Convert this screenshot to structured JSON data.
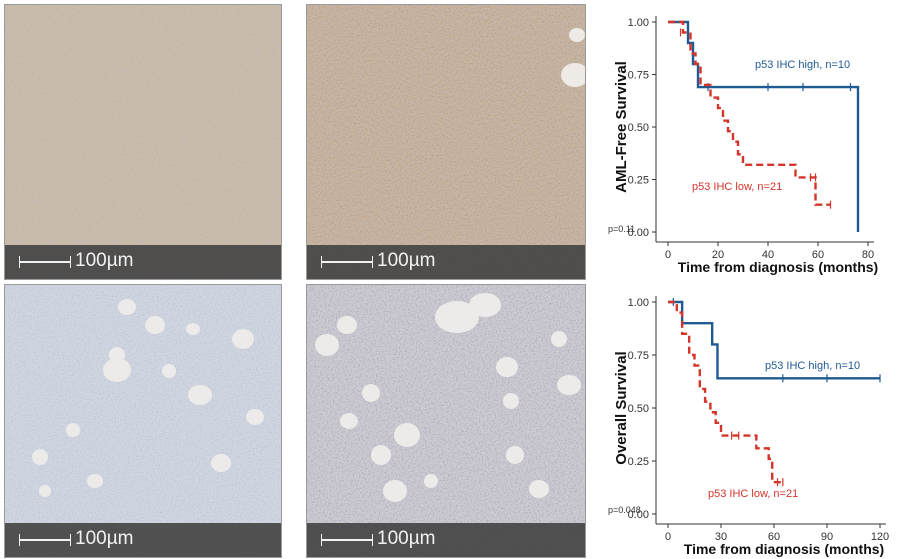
{
  "panels": [
    {
      "id": "top-left",
      "scale_label": "100µm"
    },
    {
      "id": "top-right",
      "scale_label": "100µm"
    },
    {
      "id": "bottom-left",
      "scale_label": "100µm"
    },
    {
      "id": "bottom-right",
      "scale_label": "100µm"
    }
  ],
  "colors": {
    "high": "#1f5a93",
    "low": "#d5342b"
  },
  "chart_data": [
    {
      "type": "line",
      "subtype": "kaplan-meier",
      "ylabel": "AML-Free Survival",
      "xlabel": "Time from diagnosis (months)",
      "xlim": [
        0,
        80
      ],
      "ylim": [
        0,
        1
      ],
      "xticks": [
        0,
        20,
        40,
        60,
        80
      ],
      "yticks": [
        "0.00",
        "0.25",
        "0.50",
        "0.75",
        "1.00"
      ],
      "pvalue": "p=0.11",
      "series": [
        {
          "name": "p53 IHC high, n=10",
          "steps": [
            [
              0,
              1.0
            ],
            [
              8,
              1.0
            ],
            [
              8,
              0.9
            ],
            [
              10,
              0.9
            ],
            [
              10,
              0.8
            ],
            [
              12,
              0.8
            ],
            [
              12,
              0.69
            ],
            [
              76,
              0.69
            ],
            [
              76,
              0.0
            ]
          ],
          "censors": [
            [
              16,
              0.69
            ],
            [
              40,
              0.69
            ],
            [
              54,
              0.69
            ],
            [
              73,
              0.69
            ]
          ]
        },
        {
          "name": "p53 IHC low, n=21",
          "steps": [
            [
              0,
              1.0
            ],
            [
              6,
              1.0
            ],
            [
              6,
              0.95
            ],
            [
              9,
              0.95
            ],
            [
              9,
              0.85
            ],
            [
              11,
              0.85
            ],
            [
              11,
              0.8
            ],
            [
              13,
              0.8
            ],
            [
              13,
              0.7
            ],
            [
              17,
              0.7
            ],
            [
              17,
              0.64
            ],
            [
              20,
              0.64
            ],
            [
              20,
              0.59
            ],
            [
              22,
              0.59
            ],
            [
              22,
              0.53
            ],
            [
              24,
              0.53
            ],
            [
              24,
              0.48
            ],
            [
              26,
              0.48
            ],
            [
              26,
              0.43
            ],
            [
              28,
              0.43
            ],
            [
              28,
              0.37
            ],
            [
              30,
              0.37
            ],
            [
              30,
              0.32
            ],
            [
              51,
              0.32
            ],
            [
              51,
              0.26
            ],
            [
              59,
              0.26
            ],
            [
              59,
              0.13
            ],
            [
              65,
              0.13
            ]
          ],
          "censors": [
            [
              5,
              0.95
            ],
            [
              57,
              0.26
            ],
            [
              59,
              0.26
            ],
            [
              65,
              0.13
            ]
          ]
        }
      ]
    },
    {
      "type": "line",
      "subtype": "kaplan-meier",
      "ylabel": "Overall Survival",
      "xlabel": "Time from diagnosis (months)",
      "xlim": [
        0,
        120
      ],
      "ylim": [
        0,
        1
      ],
      "xticks": [
        0,
        30,
        60,
        90,
        120
      ],
      "yticks": [
        "0.00",
        "0.25",
        "0.50",
        "0.75",
        "1.00"
      ],
      "pvalue": "p=0.048",
      "series": [
        {
          "name": "p53 IHC high, n=10",
          "steps": [
            [
              0,
              1.0
            ],
            [
              8,
              1.0
            ],
            [
              8,
              0.9
            ],
            [
              25,
              0.9
            ],
            [
              25,
              0.8
            ],
            [
              28,
              0.8
            ],
            [
              28,
              0.64
            ],
            [
              120,
              0.64
            ]
          ],
          "censors": [
            [
              3,
              1.0
            ],
            [
              65,
              0.64
            ],
            [
              90,
              0.64
            ],
            [
              120,
              0.64
            ]
          ]
        },
        {
          "name": "p53 IHC low, n=21",
          "steps": [
            [
              0,
              1.0
            ],
            [
              5,
              1.0
            ],
            [
              5,
              0.95
            ],
            [
              8,
              0.95
            ],
            [
              8,
              0.85
            ],
            [
              12,
              0.85
            ],
            [
              12,
              0.75
            ],
            [
              15,
              0.75
            ],
            [
              15,
              0.7
            ],
            [
              18,
              0.7
            ],
            [
              18,
              0.59
            ],
            [
              21,
              0.59
            ],
            [
              21,
              0.53
            ],
            [
              24,
              0.53
            ],
            [
              24,
              0.48
            ],
            [
              27,
              0.48
            ],
            [
              27,
              0.43
            ],
            [
              30,
              0.43
            ],
            [
              30,
              0.37
            ],
            [
              50,
              0.37
            ],
            [
              50,
              0.31
            ],
            [
              57,
              0.31
            ],
            [
              57,
              0.26
            ],
            [
              59,
              0.26
            ],
            [
              59,
              0.15
            ],
            [
              65,
              0.15
            ]
          ],
          "censors": [
            [
              36,
              0.37
            ],
            [
              40,
              0.37
            ],
            [
              62,
              0.15
            ],
            [
              65,
              0.15
            ]
          ]
        }
      ]
    }
  ]
}
